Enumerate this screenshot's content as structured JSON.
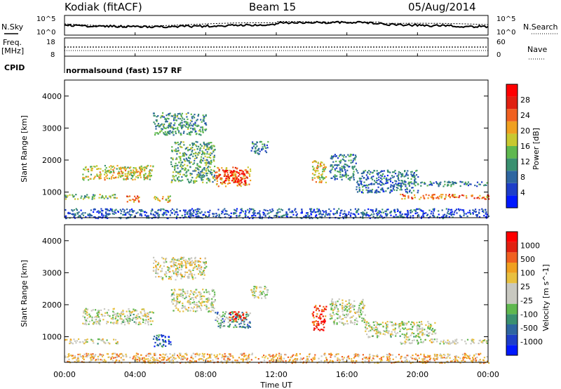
{
  "header": {
    "station": "Kodiak (fitACF)",
    "beam": "Beam 15",
    "date": "05/Aug/2014"
  },
  "strip_panels": {
    "noise": {
      "left_label": "N.Sky",
      "right_label": "N.Search",
      "left_ticks": [
        "10^5",
        "10^0"
      ],
      "right_ticks": [
        "10^5",
        "10^0"
      ]
    },
    "freq": {
      "left_label_1": "Freq.",
      "left_label_2": "[MHz]",
      "right_label": "Nave",
      "left_ticks": [
        "18",
        "8"
      ],
      "right_ticks": [
        "60",
        "0"
      ]
    },
    "cpid": {
      "label": "CPID",
      "text": "normalsound (fast) 157 RF"
    }
  },
  "axes": {
    "ylabel": "Slant Range [km]",
    "xlabel": "Time UT",
    "y_ticks": [
      "1000",
      "2000",
      "3000",
      "4000"
    ],
    "x_ticks": [
      "00:00",
      "04:00",
      "08:00",
      "12:00",
      "16:00",
      "20:00",
      "00:00"
    ],
    "ylim": [
      200,
      4500
    ],
    "xlim": [
      0,
      24
    ]
  },
  "colors": {
    "power_scale": [
      "#0018ff",
      "#1e3ec8",
      "#2e66a0",
      "#3a9070",
      "#5fb84f",
      "#c8c830",
      "#f0a020",
      "#f06020",
      "#e02010",
      "#ff0000"
    ],
    "velocity_scale": [
      "#0018ff",
      "#1e3ec8",
      "#2e66a0",
      "#3a9070",
      "#5fb84f",
      "#c8c8c0",
      "#c8c8c0",
      "#e8c040",
      "#f0a020",
      "#f06020",
      "#e02010",
      "#ff0000"
    ]
  },
  "chart_data": [
    {
      "type": "heatmap",
      "name": "Power panel",
      "colorbar_label": "Power [dB]",
      "colorbar_ticks": [
        "4",
        "8",
        "12",
        "16",
        "20",
        "24",
        "28"
      ],
      "range_km": [
        200,
        4500
      ],
      "time_ut_hours": [
        0,
        24
      ],
      "regions": [
        {
          "t": [
            1.0,
            5.0
          ],
          "r": [
            1400,
            1850
          ],
          "level": 0.55
        },
        {
          "t": [
            3.0,
            4.5
          ],
          "r": [
            1600,
            1800
          ],
          "level": 0.65
        },
        {
          "t": [
            0.0,
            3.0
          ],
          "r": [
            800,
            950
          ],
          "level": 0.45
        },
        {
          "t": [
            3.5,
            4.2
          ],
          "r": [
            700,
            900
          ],
          "level": 0.75
        },
        {
          "t": [
            5.0,
            6.0
          ],
          "r": [
            700,
            900
          ],
          "level": 0.6
        },
        {
          "t": [
            6.0,
            8.5
          ],
          "r": [
            1300,
            2600
          ],
          "level": 0.4
        },
        {
          "t": [
            8.5,
            10.5
          ],
          "r": [
            1200,
            1800
          ],
          "level": 0.7
        },
        {
          "t": [
            9.0,
            10.3
          ],
          "r": [
            1300,
            1700
          ],
          "level": 0.9
        },
        {
          "t": [
            10.5,
            11.5
          ],
          "r": [
            2200,
            2600
          ],
          "level": 0.3
        },
        {
          "t": [
            14.0,
            14.8
          ],
          "r": [
            1300,
            2000
          ],
          "level": 0.55
        },
        {
          "t": [
            15.0,
            16.5
          ],
          "r": [
            1400,
            2200
          ],
          "level": 0.3
        },
        {
          "t": [
            16.5,
            20.0
          ],
          "r": [
            1000,
            1700
          ],
          "level": 0.25
        },
        {
          "t": [
            19.0,
            24.0
          ],
          "r": [
            800,
            950
          ],
          "level": 0.7
        },
        {
          "t": [
            19.0,
            24.0
          ],
          "r": [
            1200,
            1350
          ],
          "level": 0.3
        },
        {
          "t": [
            5.0,
            8.0
          ],
          "r": [
            2800,
            3500
          ],
          "level": 0.35
        },
        {
          "t": [
            0.0,
            24.0
          ],
          "r": [
            200,
            500
          ],
          "level": 0.2
        }
      ]
    },
    {
      "type": "heatmap",
      "name": "Velocity panel",
      "colorbar_label": "Velocity [m s^-1]",
      "colorbar_ticks": [
        "1000",
        "500",
        "100",
        "25",
        "-25",
        "-100",
        "-500",
        "-1000"
      ],
      "range_km": [
        200,
        4500
      ],
      "time_ut_hours": [
        0,
        24
      ],
      "regions": [
        {
          "t": [
            1.0,
            5.0
          ],
          "r": [
            1400,
            1900
          ],
          "level": 0.5
        },
        {
          "t": [
            0.0,
            3.0
          ],
          "r": [
            800,
            950
          ],
          "level": 0.5
        },
        {
          "t": [
            5.0,
            6.0
          ],
          "r": [
            700,
            1100
          ],
          "level": 0.2
        },
        {
          "t": [
            6.0,
            8.5
          ],
          "r": [
            1800,
            2500
          ],
          "level": 0.5
        },
        {
          "t": [
            8.5,
            10.5
          ],
          "r": [
            1300,
            1800
          ],
          "level": 0.3
        },
        {
          "t": [
            9.3,
            10.3
          ],
          "r": [
            1500,
            1800
          ],
          "level": 0.85
        },
        {
          "t": [
            10.5,
            11.5
          ],
          "r": [
            2200,
            2600
          ],
          "level": 0.5
        },
        {
          "t": [
            14.0,
            14.8
          ],
          "r": [
            1200,
            2000
          ],
          "level": 0.85
        },
        {
          "t": [
            15.0,
            17.0
          ],
          "r": [
            1400,
            2200
          ],
          "level": 0.5
        },
        {
          "t": [
            17.0,
            21.0
          ],
          "r": [
            1000,
            1500
          ],
          "level": 0.5
        },
        {
          "t": [
            19.0,
            24.0
          ],
          "r": [
            800,
            950
          ],
          "level": 0.5
        },
        {
          "t": [
            5.0,
            8.0
          ],
          "r": [
            2800,
            3500
          ],
          "level": 0.55
        },
        {
          "t": [
            0.0,
            24.0
          ],
          "r": [
            200,
            500
          ],
          "level": 0.65
        }
      ]
    }
  ]
}
